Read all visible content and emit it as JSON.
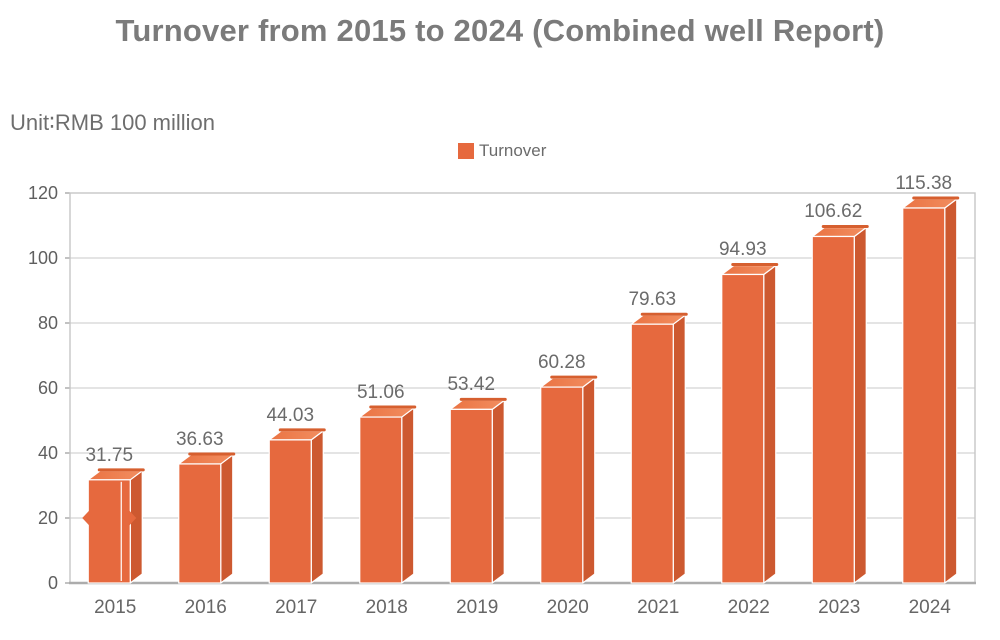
{
  "page": {
    "title": "Turnover from 2015 to 2024 (Combined well Report)",
    "unit_label": "Unit∶RMB 100 million"
  },
  "legend": {
    "label": "Turnover",
    "swatch_color": "#E6693E",
    "position": "top-center"
  },
  "chart_data": {
    "type": "bar",
    "title": "Turnover from 2015 to 2024 (Combined well Report)",
    "subtitle": "Unit∶RMB 100 million",
    "categories": [
      "2015",
      "2016",
      "2017",
      "2018",
      "2019",
      "2020",
      "2021",
      "2022",
      "2023",
      "2024"
    ],
    "series": [
      {
        "name": "Turnover",
        "values": [
          31.75,
          36.63,
          44.03,
          51.06,
          53.42,
          60.28,
          79.63,
          94.93,
          106.62,
          115.38
        ]
      }
    ],
    "xlabel": "",
    "ylabel": "",
    "ylim": [
      0,
      120
    ],
    "yticks": [
      0,
      20,
      40,
      60,
      80,
      100,
      120
    ],
    "grid": true,
    "bar_style": "3d",
    "legend_position": "top-center",
    "colors": {
      "bar_front": "#E6693E",
      "bar_side": "#CD5930",
      "bar_top_light": "#F28E60",
      "bar_top": "#EA7343",
      "bar_top_back_edge": "#D65F2F",
      "gridline": "#DBDBDB",
      "plot_border": "#C6C6C6",
      "axis_line": "#ACACAC",
      "tick": "#999999",
      "label_text": "#6b6b6b"
    }
  }
}
